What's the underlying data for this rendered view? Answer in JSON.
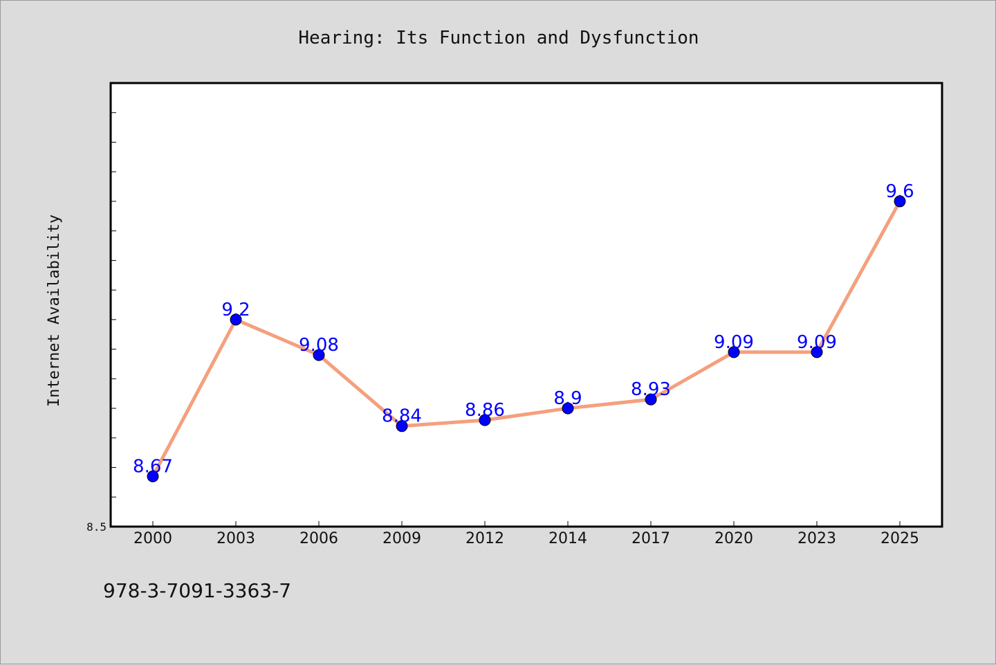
{
  "chart_data": {
    "type": "line",
    "title": "Hearing: Its Function and Dysfunction",
    "xlabel": "",
    "ylabel": "Internet Availability",
    "categories": [
      "2000",
      "2003",
      "2006",
      "2009",
      "2012",
      "2014",
      "2017",
      "2020",
      "2023",
      "2025"
    ],
    "series": [
      {
        "values": [
          8.67,
          9.2,
          9.08,
          8.84,
          8.86,
          8.9,
          8.93,
          9.09,
          9.09,
          9.6
        ]
      }
    ],
    "ylim": [
      8.5,
      10.0
    ],
    "y_tick_labels": [
      {
        "value": 8.5,
        "label": "8.5"
      }
    ],
    "y_minor_tick_step": 0.1,
    "grid": false,
    "line_color": "#f4a07e",
    "marker_color": "#0000ff",
    "label_color": "#0000ff",
    "plot_background": "#ffffff",
    "page_background": "#dcdcdc"
  },
  "footer_text": "978-3-7091-3363-7"
}
